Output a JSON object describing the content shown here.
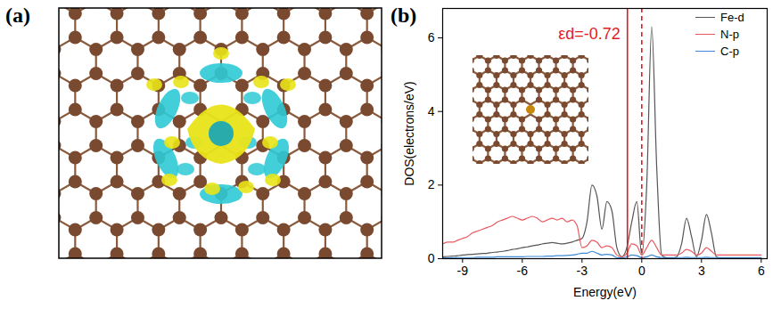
{
  "panel_labels": [
    "(a)",
    "(b)"
  ],
  "chart_data": {
    "type": "line",
    "x_label": "Energy(eV)",
    "y_label": "DOS(electrons/eV)",
    "x": [
      -10,
      -9.75,
      -9.5,
      -9.25,
      -9,
      -8.75,
      -8.5,
      -8.25,
      -8,
      -7.75,
      -7.5,
      -7.25,
      -7,
      -6.75,
      -6.5,
      -6.25,
      -6,
      -5.75,
      -5.5,
      -5.25,
      -5,
      -4.75,
      -4.5,
      -4.25,
      -4,
      -3.75,
      -3.5,
      -3.25,
      -3,
      -2.75,
      -2.5,
      -2.25,
      -2,
      -1.75,
      -1.5,
      -1.25,
      -1,
      -0.75,
      -0.5,
      -0.25,
      0,
      0.25,
      0.5,
      0.75,
      1,
      1.25,
      1.5,
      1.75,
      2,
      2.25,
      2.5,
      2.75,
      3,
      3.25,
      3.5,
      3.75,
      4,
      4.25,
      4.5,
      4.75,
      5,
      5.25,
      5.5,
      5.75,
      6
    ],
    "series": [
      {
        "name": "Fe-d",
        "color": "#555555",
        "values": [
          0.05,
          0.06,
          0.07,
          0.08,
          0.1,
          0.11,
          0.12,
          0.13,
          0.14,
          0.15,
          0.17,
          0.18,
          0.2,
          0.22,
          0.25,
          0.27,
          0.3,
          0.32,
          0.35,
          0.37,
          0.4,
          0.42,
          0.44,
          0.42,
          0.4,
          0.42,
          0.45,
          0.5,
          0.55,
          1.0,
          2.0,
          1.7,
          0.8,
          1.55,
          1.3,
          0.3,
          0.05,
          0.3,
          1.0,
          1.55,
          0.1,
          2.0,
          6.3,
          2.5,
          0.1,
          0.02,
          0.02,
          0.05,
          0.4,
          1.1,
          0.6,
          0.05,
          0.5,
          1.2,
          0.7,
          0.05,
          0.02,
          0.02,
          0.02,
          0.02,
          0.02,
          0.02,
          0.02,
          0.02,
          0.02
        ]
      },
      {
        "name": "N-p",
        "color": "#e8595f",
        "values": [
          0.4,
          0.45,
          0.45,
          0.5,
          0.55,
          0.6,
          0.7,
          0.75,
          0.8,
          0.85,
          0.9,
          1.0,
          1.05,
          1.1,
          1.15,
          1.1,
          1.05,
          1.1,
          1.15,
          1.1,
          1.0,
          1.05,
          1.1,
          1.05,
          1.1,
          1.0,
          1.05,
          0.9,
          0.3,
          0.35,
          0.5,
          0.45,
          0.3,
          0.35,
          0.3,
          0.1,
          0.05,
          0.15,
          0.4,
          0.35,
          0.1,
          0.3,
          0.5,
          0.3,
          0.1,
          0.1,
          0.1,
          0.1,
          0.15,
          0.25,
          0.2,
          0.1,
          0.15,
          0.3,
          0.2,
          0.1,
          0.1,
          0.1,
          0.1,
          0.1,
          0.1,
          0.1,
          0.1,
          0.1,
          0.1
        ]
      },
      {
        "name": "C-p",
        "color": "#3d8ad6",
        "values": [
          0.02,
          0.02,
          0.02,
          0.03,
          0.03,
          0.03,
          0.03,
          0.04,
          0.04,
          0.04,
          0.04,
          0.05,
          0.05,
          0.05,
          0.05,
          0.05,
          0.05,
          0.06,
          0.06,
          0.06,
          0.06,
          0.07,
          0.07,
          0.08,
          0.08,
          0.09,
          0.1,
          0.12,
          0.15,
          0.15,
          0.2,
          0.15,
          0.1,
          0.12,
          0.1,
          0.03,
          0.02,
          0.05,
          0.1,
          0.08,
          0.03,
          0.05,
          0.1,
          0.05,
          0.03,
          0.03,
          0.03,
          0.03,
          0.03,
          0.04,
          0.03,
          0.03,
          0.03,
          0.04,
          0.03,
          0.03,
          0.03,
          0.03,
          0.03,
          0.03,
          0.03,
          0.03,
          0.03,
          0.03,
          0.03
        ]
      }
    ],
    "xlim": [
      -10,
      6.3
    ],
    "xticks": [
      -9,
      -6,
      -3,
      0,
      3,
      6
    ],
    "ylim": [
      0,
      6.8
    ],
    "yticks": [
      0,
      2,
      4,
      6
    ],
    "legend": "top-right",
    "vlines": [
      {
        "x": -0.72,
        "color": "#e31a1c",
        "line_style": "solid"
      },
      {
        "x": 0,
        "color": "#e31a1c",
        "line_style": "dashed"
      }
    ],
    "annotations": [
      {
        "text": "εd=-0.72",
        "x": -0.72,
        "color": "#e31a1c"
      }
    ]
  }
}
